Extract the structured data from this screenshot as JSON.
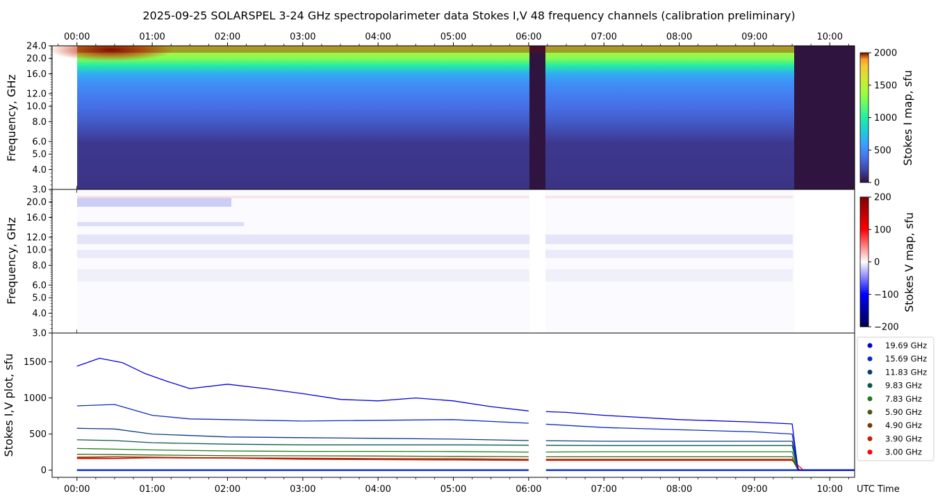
{
  "title": "2025-09-25  SOLARSPEL  3-24 GHz spectropolarimeter data   Stokes I,V   48 frequency channels   (calibration preliminary)",
  "colors": {
    "background": "#ffffff",
    "gap_dark": "#2f1440"
  },
  "chart_data": [
    {
      "id": "stokes_i_map",
      "type": "heatmap",
      "ylabel": "Frequency, GHz",
      "colorbar_label": "Stokes I map, sfu",
      "colormap": "turbo",
      "clim": [
        0,
        2000
      ],
      "colorbar_ticks": [
        "0",
        "500",
        "1000",
        "1500",
        "2000"
      ],
      "colorbar_tick_values": [
        0,
        500,
        1000,
        1500,
        2000
      ],
      "yscale": "log",
      "ylim": [
        3.0,
        24.0
      ],
      "ytick_values": [
        3.0,
        4.0,
        5.0,
        6.0,
        8.0,
        10.0,
        12.0,
        16.0,
        20.0,
        24.0
      ],
      "ytick_labels": [
        "3.0",
        "4.0",
        "5.0",
        "6.0",
        "8.0",
        "10.0",
        "12.0",
        "16.0",
        "20.0",
        "24.0"
      ],
      "data_gaps_hours": [
        [
          6.0,
          6.23
        ],
        [
          9.55,
          10.33
        ]
      ],
      "spectrum_sfu": [
        {
          "ghz": 3.0,
          "sfu": 130
        },
        {
          "ghz": 5.9,
          "sfu": 150
        },
        {
          "ghz": 8.0,
          "sfu": 290
        },
        {
          "ghz": 10.0,
          "sfu": 380
        },
        {
          "ghz": 12.0,
          "sfu": 450
        },
        {
          "ghz": 14.0,
          "sfu": 520
        },
        {
          "ghz": 16.0,
          "sfu": 650
        },
        {
          "ghz": 18.0,
          "sfu": 1000
        },
        {
          "ghz": 20.0,
          "sfu": 1300
        },
        {
          "ghz": 24.0,
          "sfu": 1600
        }
      ]
    },
    {
      "id": "stokes_v_map",
      "type": "heatmap",
      "ylabel": "Frequency, GHz",
      "colorbar_label": "Stokes V map, sfu",
      "colormap": "seismic",
      "clim": [
        -200,
        200
      ],
      "colorbar_ticks": [
        "−200",
        "−100",
        "0",
        "100",
        "200"
      ],
      "colorbar_tick_values": [
        -200,
        -100,
        0,
        100,
        200
      ],
      "yscale": "log",
      "ylim": [
        3.0,
        24.0
      ],
      "ytick_values": [
        3.0,
        4.0,
        5.0,
        6.0,
        8.0,
        10.0,
        12.0,
        16.0,
        20.0
      ],
      "ytick_labels": [
        "3.0",
        "4.0",
        "5.0",
        "6.0",
        "8.0",
        "10.0",
        "12.0",
        "16.0",
        "20.0"
      ]
    },
    {
      "id": "stokes_iv_plot",
      "type": "line",
      "ylabel": "Stokes I,V plot, sfu",
      "xlabel": "UTC Time",
      "ylim": [
        -100,
        1900
      ],
      "ytick_values": [
        0,
        500,
        1000,
        1500
      ],
      "ytick_labels": [
        "0",
        "500",
        "1000",
        "1500"
      ],
      "series": [
        {
          "name": "19.69 GHz",
          "color": "#0000d8",
          "t": [
            0.0,
            0.3,
            0.6,
            0.9,
            1.2,
            1.5,
            2.0,
            2.5,
            3.0,
            3.5,
            4.0,
            4.5,
            5.0,
            5.5,
            6.0,
            6.5,
            7.0,
            8.0,
            9.0,
            9.5,
            9.58,
            10.33
          ],
          "v": [
            1440,
            1550,
            1490,
            1340,
            1230,
            1130,
            1190,
            1130,
            1060,
            980,
            960,
            1000,
            960,
            880,
            820,
            800,
            760,
            700,
            665,
            640,
            0,
            0
          ]
        },
        {
          "name": "15.69 GHz",
          "color": "#0d2bbf",
          "t": [
            0.0,
            0.5,
            1.0,
            1.5,
            2.0,
            3.0,
            4.0,
            5.0,
            6.0,
            7.0,
            8.0,
            9.0,
            9.5,
            9.58,
            10.33
          ],
          "v": [
            890,
            910,
            760,
            710,
            700,
            680,
            690,
            700,
            650,
            590,
            560,
            530,
            500,
            0,
            0
          ]
        },
        {
          "name": "11.83 GHz",
          "color": "#0a3c80",
          "t": [
            0.0,
            0.5,
            1.0,
            2.0,
            3.0,
            4.0,
            5.0,
            6.0,
            7.0,
            8.0,
            9.0,
            9.5,
            9.58,
            10.33
          ],
          "v": [
            580,
            570,
            500,
            460,
            450,
            440,
            430,
            410,
            400,
            400,
            400,
            400,
            0,
            0
          ]
        },
        {
          "name": "9.83 GHz",
          "color": "#0a5a4a",
          "t": [
            0.0,
            0.5,
            1.0,
            2.0,
            3.0,
            4.0,
            5.0,
            6.0,
            7.0,
            8.0,
            9.0,
            9.5,
            9.58,
            10.33
          ],
          "v": [
            420,
            410,
            380,
            360,
            350,
            350,
            350,
            345,
            340,
            340,
            340,
            340,
            0,
            0
          ]
        },
        {
          "name": "7.83 GHz",
          "color": "#1a7d1a",
          "t": [
            0.0,
            0.5,
            1.0,
            2.0,
            3.0,
            4.0,
            5.0,
            6.0,
            7.0,
            8.0,
            9.0,
            9.5,
            9.58,
            10.33
          ],
          "v": [
            300,
            290,
            280,
            265,
            260,
            260,
            258,
            250,
            255,
            255,
            255,
            255,
            0,
            0
          ]
        },
        {
          "name": "5.90 GHz",
          "color": "#4b5a10",
          "t": [
            0.0,
            0.5,
            1.0,
            2.0,
            3.0,
            4.0,
            5.0,
            6.0,
            7.0,
            8.0,
            9.0,
            9.5,
            9.58,
            10.33
          ],
          "v": [
            220,
            215,
            210,
            200,
            198,
            195,
            190,
            185,
            185,
            185,
            185,
            185,
            0,
            0
          ]
        },
        {
          "name": "4.90 GHz",
          "color": "#7a3a05",
          "t": [
            0.0,
            0.5,
            1.0,
            2.0,
            3.0,
            4.0,
            5.0,
            6.0,
            7.0,
            8.0,
            9.0,
            9.5,
            9.58,
            10.33
          ],
          "v": [
            180,
            185,
            180,
            170,
            165,
            160,
            158,
            150,
            150,
            150,
            150,
            150,
            0,
            0
          ]
        },
        {
          "name": "3.90 GHz",
          "color": "#c0200a",
          "t": [
            0.0,
            0.5,
            1.0,
            2.0,
            3.0,
            4.0,
            5.0,
            6.0,
            7.0,
            8.0,
            9.0,
            9.5,
            9.6,
            10.33
          ],
          "v": [
            170,
            165,
            175,
            170,
            160,
            150,
            145,
            140,
            140,
            140,
            140,
            140,
            0,
            0
          ]
        },
        {
          "name": "3.00 GHz",
          "color": "#ff0000",
          "t": [
            0.0,
            0.5,
            1.0,
            2.0,
            3.0,
            4.0,
            5.0,
            6.0,
            7.0,
            8.0,
            9.0,
            9.5,
            9.65,
            10.33
          ],
          "v": [
            160,
            160,
            170,
            165,
            150,
            145,
            140,
            135,
            135,
            135,
            135,
            135,
            0,
            0
          ]
        }
      ]
    }
  ],
  "x_axis": {
    "range_hours": [
      -0.33,
      10.33
    ],
    "tick_hours": [
      0,
      1,
      2,
      3,
      4,
      5,
      6,
      7,
      8,
      9,
      10
    ],
    "tick_labels": [
      "00:00",
      "01:00",
      "02:00",
      "03:00",
      "04:00",
      "05:00",
      "06:00",
      "07:00",
      "08:00",
      "09:00",
      "10:00"
    ]
  }
}
